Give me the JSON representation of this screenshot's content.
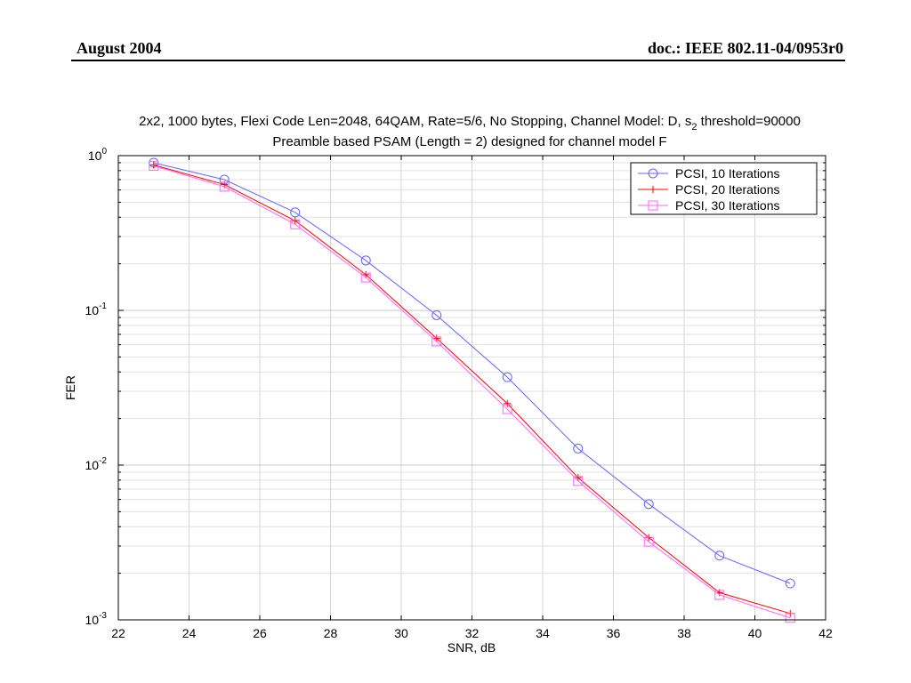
{
  "header": {
    "date": "August 2004",
    "doc": "doc.: IEEE 802.11-04/0953r0"
  },
  "chart_data": {
    "type": "line",
    "title_parts": [
      "2x2, 1000 bytes, Flexi Code Len=2048, 64QAM, Rate=5/6, No Stopping, Channel Model: D, s",
      "2",
      " threshold=90000"
    ],
    "subtitle": "Preamble based PSAM (Length = 2) designed for channel model F",
    "xlabel": "SNR, dB",
    "ylabel": "FER",
    "xlim": [
      22,
      42
    ],
    "ylim": [
      0.001,
      1
    ],
    "yscale": "log",
    "grid": true,
    "legend_position": "top-right",
    "x_ticks": [
      "22",
      "24",
      "26",
      "28",
      "30",
      "32",
      "34",
      "36",
      "38",
      "40",
      "42"
    ],
    "y_ticks": [
      {
        "value": 1,
        "base": "10",
        "exp": "0"
      },
      {
        "value": 0.1,
        "base": "10",
        "exp": "-1"
      },
      {
        "value": 0.01,
        "base": "10",
        "exp": "-2"
      },
      {
        "value": 0.001,
        "base": "10",
        "exp": "-3"
      }
    ],
    "x": [
      23,
      25,
      27,
      29,
      31,
      33,
      35,
      37,
      39,
      41
    ],
    "series": [
      {
        "name": "PCSI, 10 Iterations",
        "color": "#6666ff",
        "marker": "circle",
        "values": [
          0.9,
          0.7,
          0.43,
          0.21,
          0.093,
          0.037,
          0.0128,
          0.0056,
          0.0026,
          0.00172
        ]
      },
      {
        "name": "PCSI, 20 Iterations",
        "color": "#ff0000",
        "marker": "plus",
        "values": [
          0.87,
          0.65,
          0.38,
          0.17,
          0.066,
          0.025,
          0.0083,
          0.0034,
          0.0015,
          0.0011
        ]
      },
      {
        "name": "PCSI, 30 Iterations",
        "color": "#ff66ff",
        "marker": "square",
        "values": [
          0.86,
          0.63,
          0.36,
          0.163,
          0.063,
          0.023,
          0.0079,
          0.0032,
          0.00145,
          0.00103
        ]
      }
    ]
  }
}
